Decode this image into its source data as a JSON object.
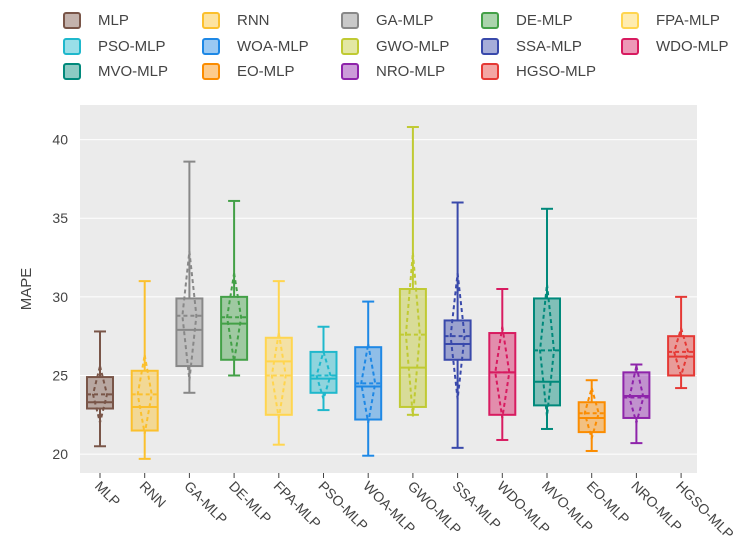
{
  "chart_data": {
    "type": "box",
    "title": "",
    "xlabel": "",
    "ylabel": "MAPE",
    "ylim": [
      18.8,
      42.2
    ],
    "yticks": [
      20,
      25,
      30,
      35,
      40
    ],
    "grid": true,
    "legend_position": "top",
    "boxes": [
      {
        "name": "MLP",
        "color": "#795548",
        "min": 20.5,
        "q1": 22.9,
        "median": 23.3,
        "q3": 24.9,
        "max": 27.8,
        "mean": 23.8,
        "mean_minus_sd": 22.0,
        "mean_plus_sd": 25.6
      },
      {
        "name": "RNN",
        "color": "#FBC02D",
        "min": 19.7,
        "q1": 21.5,
        "median": 23.0,
        "q3": 25.3,
        "max": 31.0,
        "mean": 23.8,
        "mean_minus_sd": 21.3,
        "mean_plus_sd": 26.3
      },
      {
        "name": "GA-MLP",
        "color": "#888888",
        "min": 23.9,
        "q1": 25.6,
        "median": 27.9,
        "q3": 29.9,
        "max": 38.6,
        "mean": 28.8,
        "mean_minus_sd": 24.7,
        "mean_plus_sd": 32.9
      },
      {
        "name": "DE-MLP",
        "color": "#43A047",
        "min": 25.0,
        "q1": 26.0,
        "median": 28.3,
        "q3": 30.0,
        "max": 36.1,
        "mean": 28.7,
        "mean_minus_sd": 25.9,
        "mean_plus_sd": 31.5
      },
      {
        "name": "FPA-MLP",
        "color": "#FFD54F",
        "min": 20.6,
        "q1": 22.5,
        "median": 25.9,
        "q3": 27.4,
        "max": 31.0,
        "mean": 25.0,
        "mean_minus_sd": 22.3,
        "mean_plus_sd": 27.7
      },
      {
        "name": "PSO-MLP",
        "color": "#1FB8CC",
        "min": 22.8,
        "q1": 23.9,
        "median": 24.8,
        "q3": 26.5,
        "max": 28.1,
        "mean": 25.0,
        "mean_minus_sd": 23.5,
        "mean_plus_sd": 26.5
      },
      {
        "name": "WOA-MLP",
        "color": "#1E88E5",
        "min": 19.9,
        "q1": 22.2,
        "median": 24.3,
        "q3": 26.8,
        "max": 29.7,
        "mean": 24.5,
        "mean_minus_sd": 22.0,
        "mean_plus_sd": 27.0
      },
      {
        "name": "GWO-MLP",
        "color": "#C0CA33",
        "min": 22.5,
        "q1": 23.0,
        "median": 25.5,
        "q3": 30.5,
        "max": 40.8,
        "mean": 27.6,
        "mean_minus_sd": 22.4,
        "mean_plus_sd": 32.8
      },
      {
        "name": "SSA-MLP",
        "color": "#3949AB",
        "min": 20.4,
        "q1": 26.0,
        "median": 27.0,
        "q3": 28.5,
        "max": 36.0,
        "mean": 27.5,
        "mean_minus_sd": 23.5,
        "mean_plus_sd": 31.5
      },
      {
        "name": "WDO-MLP",
        "color": "#D81B60",
        "min": 20.9,
        "q1": 22.5,
        "median": 25.2,
        "q3": 27.7,
        "max": 30.5,
        "mean": 25.2,
        "mean_minus_sd": 22.3,
        "mean_plus_sd": 28.1
      },
      {
        "name": "MVO-MLP",
        "color": "#00897B",
        "min": 21.6,
        "q1": 23.1,
        "median": 24.6,
        "q3": 29.9,
        "max": 35.6,
        "mean": 26.6,
        "mean_minus_sd": 22.4,
        "mean_plus_sd": 30.8
      },
      {
        "name": "EO-MLP",
        "color": "#FB8C00",
        "min": 20.2,
        "q1": 21.4,
        "median": 22.3,
        "q3": 23.3,
        "max": 24.7,
        "mean": 22.6,
        "mean_minus_sd": 21.0,
        "mean_plus_sd": 24.2
      },
      {
        "name": "NRO-MLP",
        "color": "#8E24AA",
        "min": 20.7,
        "q1": 22.3,
        "median": 23.7,
        "q3": 25.2,
        "max": 25.7,
        "mean": 23.6,
        "mean_minus_sd": 22.0,
        "mean_plus_sd": 25.6
      },
      {
        "name": "HGSO-MLP",
        "color": "#E53935",
        "min": 24.2,
        "q1": 25.0,
        "median": 26.2,
        "q3": 27.5,
        "max": 30.0,
        "mean": 26.5,
        "mean_minus_sd": 25.0,
        "mean_plus_sd": 28.0
      }
    ],
    "legend": [
      [
        "MLP",
        "RNN",
        "GA-MLP",
        "DE-MLP",
        "FPA-MLP"
      ],
      [
        "PSO-MLP",
        "WOA-MLP",
        "GWO-MLP",
        "SSA-MLP",
        "WDO-MLP"
      ],
      [
        "MVO-MLP",
        "EO-MLP",
        "NRO-MLP",
        "HGSO-MLP"
      ]
    ]
  }
}
